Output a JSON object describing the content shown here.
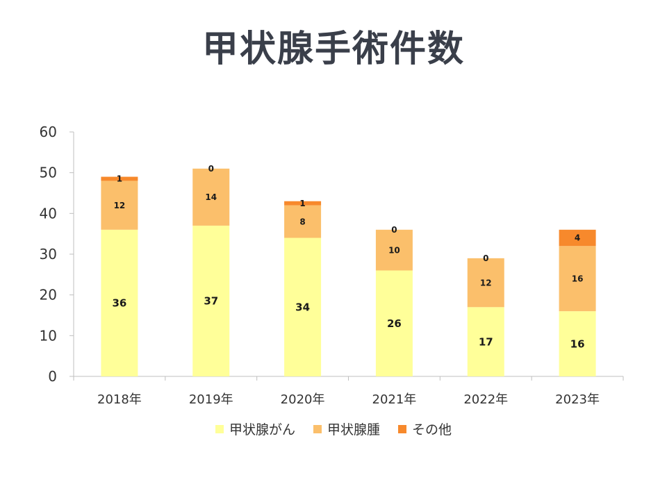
{
  "chart_data": {
    "type": "bar",
    "stacked": true,
    "title": "甲状腺手術件数",
    "categories": [
      "2018年",
      "2019年",
      "2020年",
      "2021年",
      "2022年",
      "2023年"
    ],
    "series": [
      {
        "name": "甲状腺がん",
        "color": "#ffff99",
        "values": [
          36,
          37,
          34,
          26,
          17,
          16
        ]
      },
      {
        "name": "甲状腺腫",
        "color": "#fbbf6b",
        "values": [
          12,
          14,
          8,
          10,
          12,
          16
        ]
      },
      {
        "name": "その他",
        "color": "#f7892c",
        "values": [
          1,
          0,
          1,
          0,
          0,
          4
        ]
      }
    ],
    "ylim": [
      0,
      60
    ],
    "yticks": [
      0,
      10,
      20,
      30,
      40,
      50,
      60
    ],
    "grid": false,
    "legend": "bottom"
  }
}
